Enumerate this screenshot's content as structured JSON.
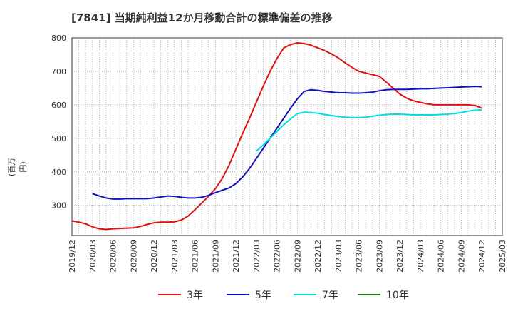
{
  "chart_data": {
    "type": "line",
    "title": "[7841]  当期純利益12か月移動合計の標準偏差の推移",
    "ylabel": "(百万円)",
    "xlabel": "",
    "ylim": [
      210,
      800
    ],
    "yticks": [
      300,
      400,
      500,
      600,
      700,
      800
    ],
    "x_range": [
      "2019/12",
      "2025/03"
    ],
    "xticks": [
      "2019/12",
      "2020/03",
      "2020/06",
      "2020/09",
      "2020/12",
      "2021/03",
      "2021/06",
      "2021/09",
      "2021/12",
      "2022/03",
      "2022/06",
      "2022/09",
      "2022/12",
      "2023/03",
      "2023/06",
      "2023/09",
      "2023/12",
      "2024/03",
      "2024/06",
      "2024/09",
      "2024/12",
      "2025/03"
    ],
    "grid": true,
    "legend_position": "bottom",
    "series": [
      {
        "name": "3年",
        "color": "#dd1111",
        "x": [
          "2019/12",
          "2020/01",
          "2020/02",
          "2020/03",
          "2020/04",
          "2020/05",
          "2020/06",
          "2020/07",
          "2020/08",
          "2020/09",
          "2020/10",
          "2020/11",
          "2020/12",
          "2021/01",
          "2021/02",
          "2021/03",
          "2021/04",
          "2021/05",
          "2021/06",
          "2021/07",
          "2021/08",
          "2021/09",
          "2021/10",
          "2021/11",
          "2021/12",
          "2022/01",
          "2022/02",
          "2022/03",
          "2022/04",
          "2022/05",
          "2022/06",
          "2022/07",
          "2022/08",
          "2022/09",
          "2022/10",
          "2022/11",
          "2022/12",
          "2023/01",
          "2023/02",
          "2023/03",
          "2023/04",
          "2023/05",
          "2023/06",
          "2023/07",
          "2023/08",
          "2023/09",
          "2023/10",
          "2023/11",
          "2023/12",
          "2024/01",
          "2024/02",
          "2024/03",
          "2024/04",
          "2024/05",
          "2024/06",
          "2024/07",
          "2024/08",
          "2024/09",
          "2024/10",
          "2024/11",
          "2024/12"
        ],
        "values": [
          254,
          250,
          245,
          236,
          230,
          228,
          230,
          231,
          232,
          233,
          237,
          243,
          248,
          250,
          250,
          251,
          256,
          268,
          287,
          307,
          327,
          350,
          380,
          420,
          468,
          515,
          560,
          608,
          655,
          700,
          738,
          770,
          780,
          785,
          783,
          778,
          770,
          762,
          752,
          740,
          725,
          712,
          700,
          695,
          690,
          685,
          668,
          650,
          632,
          620,
          612,
          607,
          603,
          600,
          600,
          600,
          600,
          600,
          600,
          598,
          590
        ]
      },
      {
        "name": "5年",
        "color": "#1111bb",
        "x": [
          "2020/03",
          "2020/04",
          "2020/05",
          "2020/06",
          "2020/07",
          "2020/08",
          "2020/09",
          "2020/10",
          "2020/11",
          "2020/12",
          "2021/01",
          "2021/02",
          "2021/03",
          "2021/04",
          "2021/05",
          "2021/06",
          "2021/07",
          "2021/08",
          "2021/09",
          "2021/10",
          "2021/11",
          "2021/12",
          "2022/01",
          "2022/02",
          "2022/03",
          "2022/04",
          "2022/05",
          "2022/06",
          "2022/07",
          "2022/08",
          "2022/09",
          "2022/10",
          "2022/11",
          "2022/12",
          "2023/01",
          "2023/02",
          "2023/03",
          "2023/04",
          "2023/05",
          "2023/06",
          "2023/07",
          "2023/08",
          "2023/09",
          "2023/10",
          "2023/11",
          "2023/12",
          "2024/01",
          "2024/02",
          "2024/03",
          "2024/04",
          "2024/05",
          "2024/06",
          "2024/07",
          "2024/08",
          "2024/09",
          "2024/10",
          "2024/11",
          "2024/12"
        ],
        "values": [
          335,
          328,
          322,
          319,
          319,
          320,
          320,
          320,
          320,
          322,
          325,
          328,
          327,
          324,
          322,
          322,
          324,
          330,
          338,
          345,
          352,
          365,
          385,
          410,
          440,
          470,
          500,
          530,
          560,
          590,
          618,
          640,
          645,
          643,
          640,
          638,
          636,
          636,
          635,
          635,
          636,
          638,
          642,
          645,
          646,
          646,
          646,
          647,
          648,
          648,
          649,
          650,
          651,
          652,
          653,
          654,
          655,
          654
        ]
      },
      {
        "name": "7年",
        "color": "#00dddd",
        "x": [
          "2022/03",
          "2022/04",
          "2022/05",
          "2022/06",
          "2022/07",
          "2022/08",
          "2022/09",
          "2022/10",
          "2022/11",
          "2022/12",
          "2023/01",
          "2023/02",
          "2023/03",
          "2023/04",
          "2023/05",
          "2023/06",
          "2023/07",
          "2023/08",
          "2023/09",
          "2023/10",
          "2023/11",
          "2023/12",
          "2024/01",
          "2024/02",
          "2024/03",
          "2024/04",
          "2024/05",
          "2024/06",
          "2024/07",
          "2024/08",
          "2024/09",
          "2024/10",
          "2024/11",
          "2024/12"
        ],
        "values": [
          462,
          480,
          500,
          520,
          540,
          558,
          574,
          578,
          577,
          575,
          571,
          568,
          565,
          563,
          562,
          562,
          563,
          566,
          569,
          571,
          572,
          572,
          571,
          570,
          570,
          570,
          570,
          571,
          572,
          574,
          577,
          581,
          584,
          585
        ]
      },
      {
        "name": "10年",
        "color": "#117711",
        "x": [],
        "values": []
      }
    ]
  }
}
